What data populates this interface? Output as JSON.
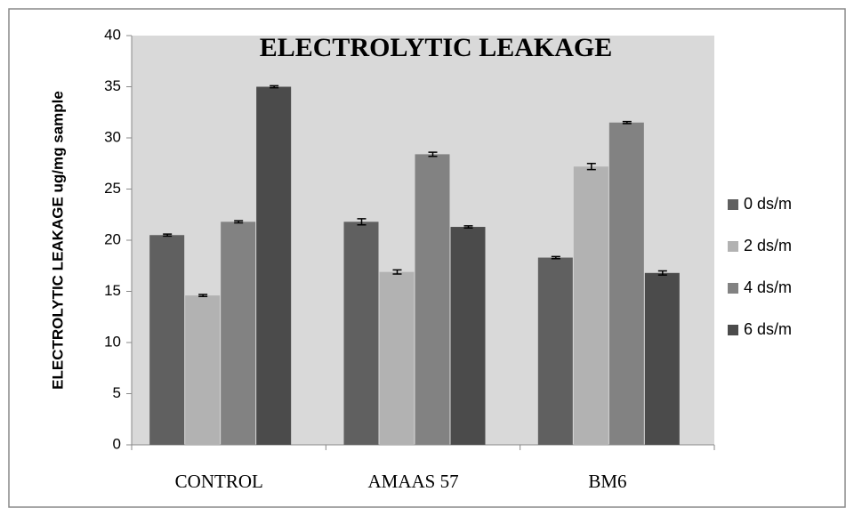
{
  "chart_data": {
    "type": "bar",
    "title": "ELECTROLYTIC LEAKAGE",
    "y_label": "ELECTROLYTIC LEAKAGE ug/mg sample",
    "categories": [
      "CONTROL",
      "AMAAS 57",
      "BM6"
    ],
    "series": [
      {
        "name": "0 ds/m",
        "color": "#606060",
        "values": [
          20.5,
          21.8,
          18.3
        ],
        "errors": [
          0.1,
          0.3,
          0.1
        ]
      },
      {
        "name": "2 ds/m",
        "color": "#b2b2b2",
        "values": [
          14.6,
          16.9,
          27.2
        ],
        "errors": [
          0.1,
          0.2,
          0.3
        ]
      },
      {
        "name": "4 ds/m",
        "color": "#828282",
        "values": [
          21.8,
          28.4,
          31.5
        ],
        "errors": [
          0.1,
          0.2,
          0.1
        ]
      },
      {
        "name": "6 ds/m",
        "color": "#4b4b4b",
        "values": [
          35.0,
          21.3,
          16.8
        ],
        "errors": [
          0.1,
          0.1,
          0.2
        ]
      }
    ],
    "ylim": [
      0,
      40
    ],
    "yticks": [
      0,
      5,
      10,
      15,
      20,
      25,
      30,
      35,
      40
    ],
    "legend": "right"
  }
}
